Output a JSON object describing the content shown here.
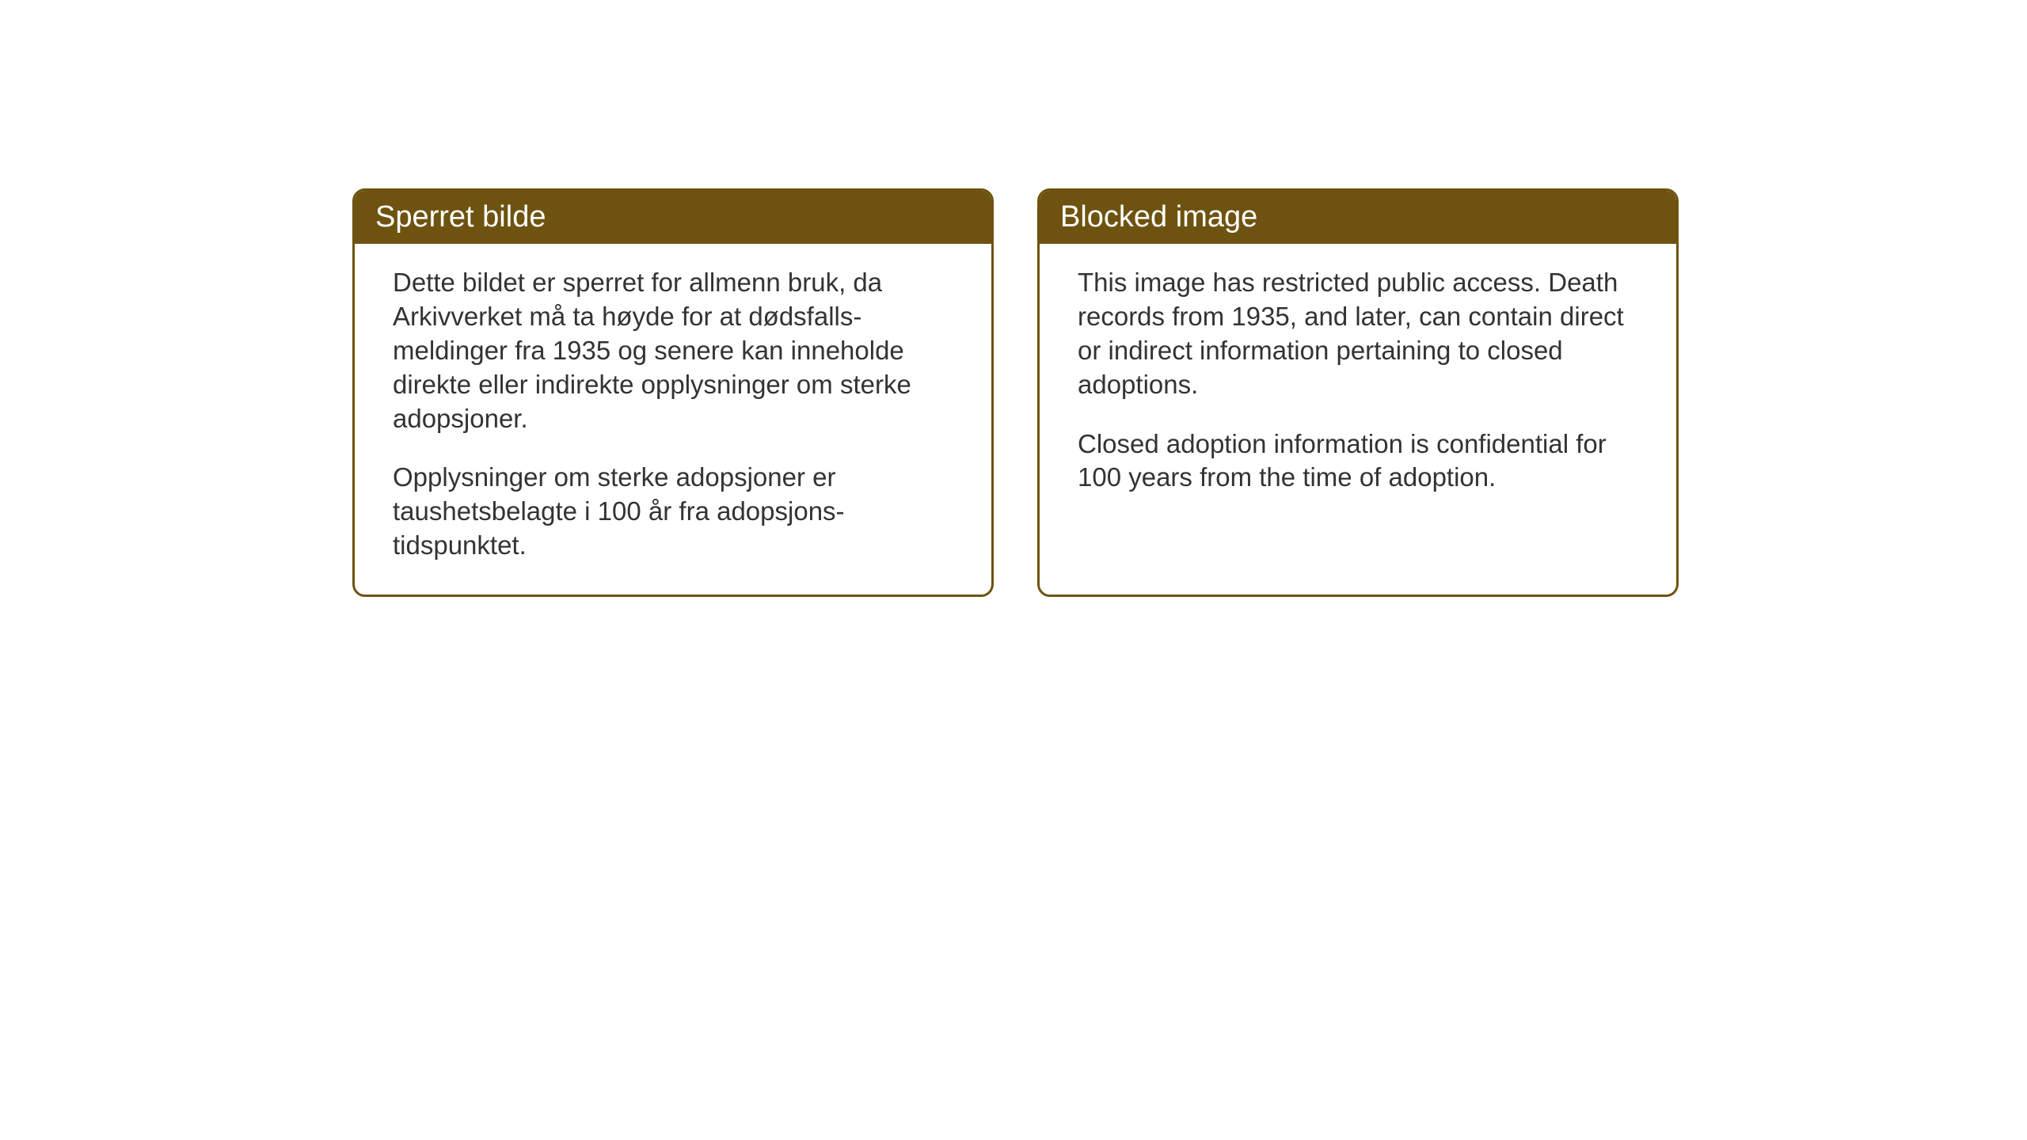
{
  "notices": {
    "norwegian": {
      "title": "Sperret bilde",
      "paragraph1": "Dette bildet er sperret for allmenn bruk, da Arkivverket må ta høyde for at dødsfalls-meldinger fra 1935 og senere kan inneholde direkte eller indirekte opplysninger om sterke adopsjoner.",
      "paragraph2": "Opplysninger om sterke adopsjoner er taushetsbelagte i 100 år fra adopsjons-tidspunktet."
    },
    "english": {
      "title": "Blocked image",
      "paragraph1": "This image has restricted public access. Death records from 1935, and later, can contain direct or indirect information pertaining to closed adoptions.",
      "paragraph2": "Closed adoption information is confidential for 100 years from the time of adoption."
    }
  },
  "styling": {
    "header_bg_color": "#6e5310",
    "header_text_color": "#ffffff",
    "border_color": "#6e5310",
    "body_bg_color": "#ffffff",
    "body_text_color": "#333333",
    "title_fontsize": 38,
    "body_fontsize": 33,
    "border_radius": 16,
    "border_width": 3
  }
}
